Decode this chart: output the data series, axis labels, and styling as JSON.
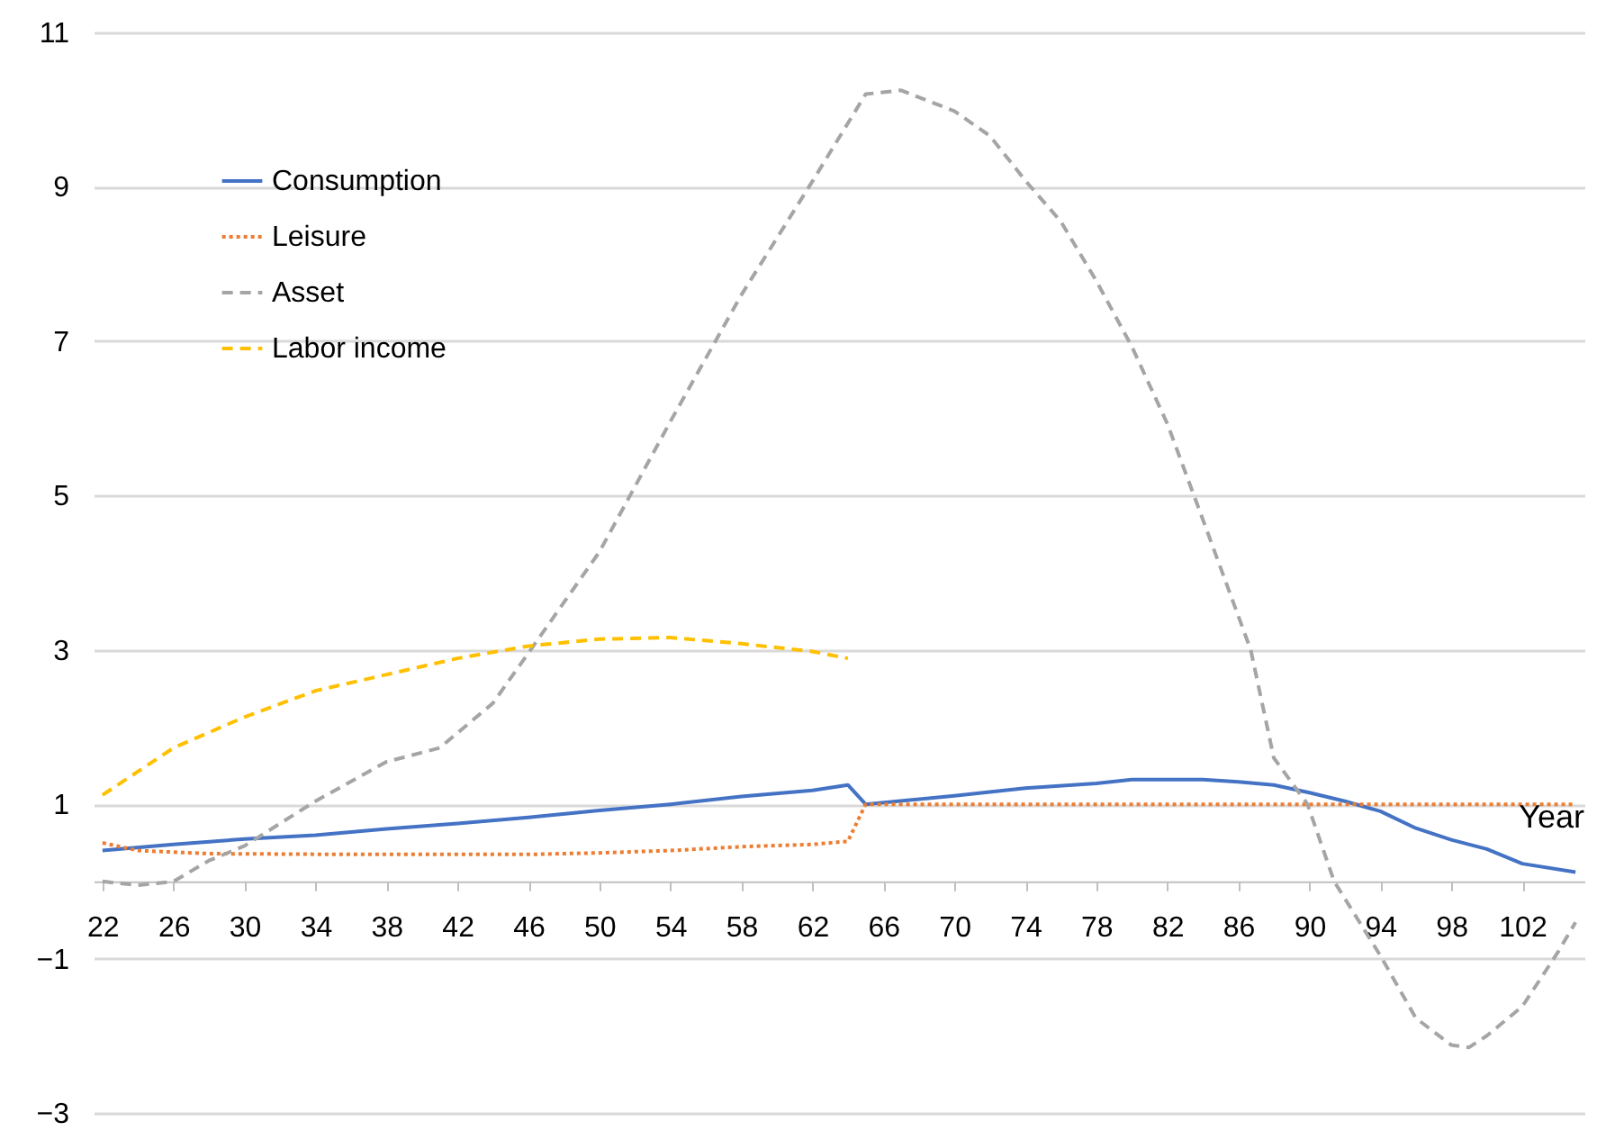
{
  "chart_data": {
    "type": "line",
    "xlabel": "Year",
    "xlim": [
      21.5,
      105.5
    ],
    "xticks": [
      22,
      26,
      30,
      34,
      38,
      42,
      46,
      50,
      54,
      58,
      62,
      66,
      70,
      74,
      78,
      82,
      86,
      90,
      94,
      98,
      102
    ],
    "ylim": [
      -3,
      11
    ],
    "yticks": [
      -3,
      -1,
      1,
      3,
      5,
      7,
      9,
      11
    ],
    "grid": "y",
    "legend": "top left",
    "series": [
      {
        "name": "Consumption",
        "color": "#4472c4",
        "line_style": "solid",
        "x": [
          22,
          26,
          30,
          34,
          38,
          42,
          46,
          50,
          54,
          58,
          62,
          64,
          65,
          70,
          74,
          78,
          80,
          84,
          86,
          88,
          90,
          92,
          94,
          96,
          98,
          100,
          102,
          105
        ],
        "values": [
          0.4,
          0.48,
          0.55,
          0.6,
          0.68,
          0.75,
          0.83,
          0.92,
          1.0,
          1.1,
          1.18,
          1.25,
          1.0,
          1.11,
          1.21,
          1.27,
          1.32,
          1.32,
          1.29,
          1.25,
          1.15,
          1.04,
          0.91,
          0.69,
          0.54,
          0.42,
          0.23,
          0.12
        ]
      },
      {
        "name": "Leisure",
        "color": "#ed7d31",
        "line_style": "dotted",
        "x": [
          22,
          24,
          28,
          36,
          46,
          50,
          54,
          58,
          62,
          64,
          65,
          70,
          80,
          90,
          100,
          105
        ],
        "values": [
          0.5,
          0.4,
          0.36,
          0.35,
          0.35,
          0.37,
          0.4,
          0.45,
          0.48,
          0.52,
          1.0,
          1.0,
          1.0,
          1.0,
          1.0,
          1.0
        ]
      },
      {
        "name": "Asset",
        "color": "#a5a5a5",
        "line_style": "dashed",
        "x": [
          22,
          24,
          26,
          28,
          30,
          34,
          38,
          41,
          44,
          46,
          50,
          54,
          58,
          62,
          65,
          67,
          70,
          72,
          74,
          76,
          78,
          80,
          82,
          84,
          86.7,
          88,
          89.9,
          91.4,
          94,
          96,
          98,
          99,
          100,
          102,
          104,
          105
        ],
        "values": [
          0.0,
          -0.05,
          0.0,
          0.27,
          0.46,
          1.04,
          1.55,
          1.73,
          2.31,
          2.96,
          4.27,
          5.96,
          7.6,
          9.07,
          10.2,
          10.25,
          9.98,
          9.66,
          9.08,
          8.55,
          7.78,
          6.93,
          5.93,
          4.69,
          3.0,
          1.6,
          1.0,
          0.0,
          -0.96,
          -1.77,
          -2.12,
          -2.15,
          -2.0,
          -1.62,
          -0.92,
          -0.53
        ]
      },
      {
        "name": "Labor income",
        "color": "#ffc000",
        "line_style": "dashed",
        "x": [
          22,
          26,
          30,
          34,
          38,
          42,
          46,
          50,
          54,
          58,
          62,
          64
        ],
        "values": [
          1.12,
          1.73,
          2.13,
          2.47,
          2.68,
          2.89,
          3.05,
          3.14,
          3.16,
          3.08,
          2.98,
          2.89
        ]
      }
    ]
  }
}
